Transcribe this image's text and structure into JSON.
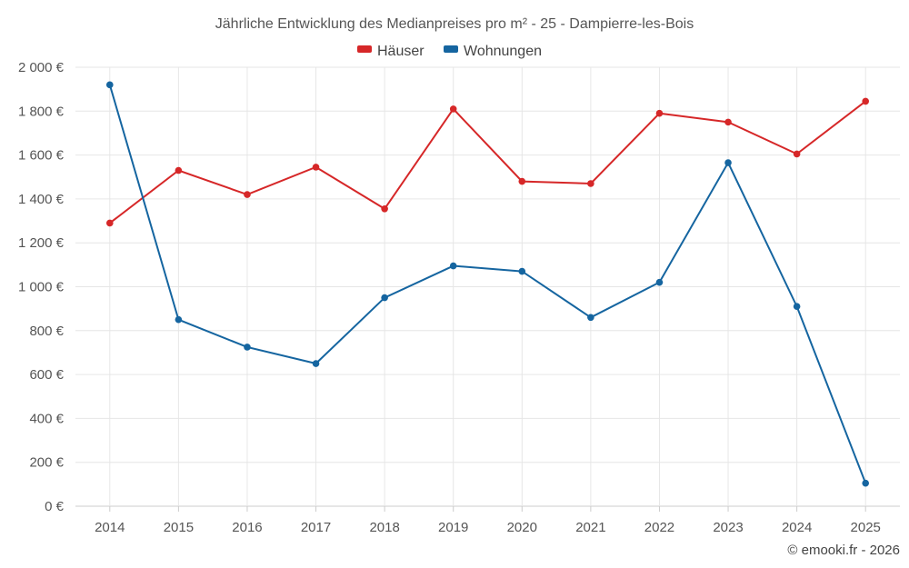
{
  "chart_data": {
    "type": "line",
    "title": "Jährliche Entwicklung des Medianpreises pro m² - 25 - Dampierre-les-Bois",
    "categories": [
      "2014",
      "2015",
      "2016",
      "2017",
      "2018",
      "2019",
      "2020",
      "2021",
      "2022",
      "2023",
      "2024",
      "2025"
    ],
    "series": [
      {
        "name": "Häuser",
        "color": "#d62728",
        "values": [
          1290,
          1530,
          1420,
          1545,
          1355,
          1810,
          1480,
          1470,
          1790,
          1750,
          1605,
          1845
        ]
      },
      {
        "name": "Wohnungen",
        "color": "#1565a0",
        "values": [
          1920,
          850,
          725,
          650,
          950,
          1095,
          1070,
          860,
          1020,
          1565,
          910,
          105
        ]
      }
    ],
    "ylim": [
      0,
      2000
    ],
    "yticks": [
      0,
      200,
      400,
      600,
      800,
      1000,
      1200,
      1400,
      1600,
      1800,
      2000
    ],
    "ytick_labels": [
      "0 €",
      "200 €",
      "400 €",
      "600 €",
      "800 €",
      "1 000 €",
      "1 200 €",
      "1 400 €",
      "1 600 €",
      "1 800 €",
      "2 000 €"
    ],
    "xlabel": "",
    "ylabel": "",
    "grid": true,
    "legend_position": "top-center"
  },
  "credit": "© emooki.fr - 2026"
}
